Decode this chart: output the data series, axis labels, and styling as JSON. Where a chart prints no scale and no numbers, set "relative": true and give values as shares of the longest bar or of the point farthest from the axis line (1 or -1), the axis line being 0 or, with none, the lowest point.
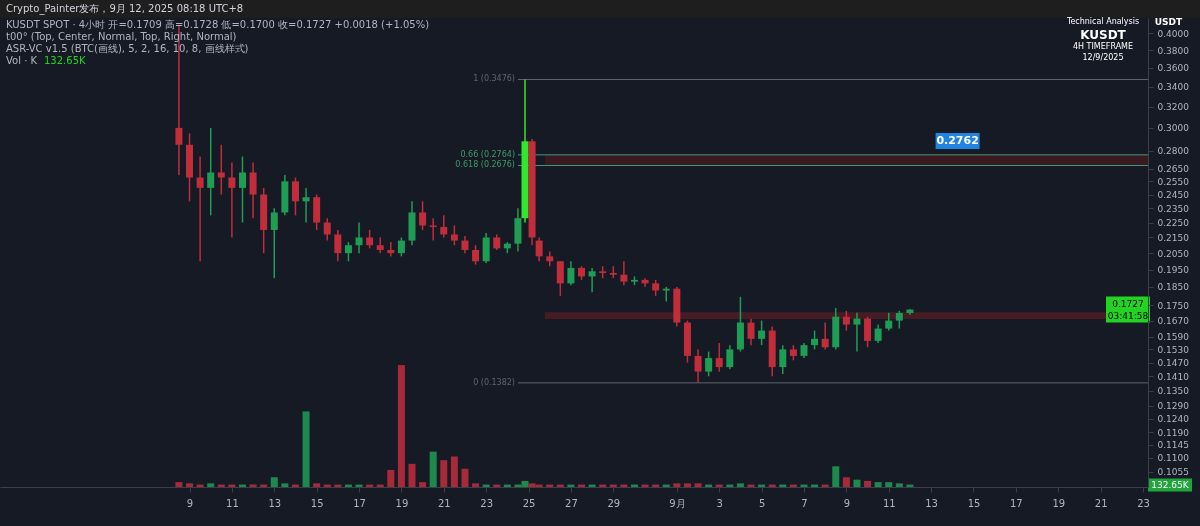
{
  "chart_data": [
    {
      "type": "candlestick",
      "ylabel": "USDT",
      "log": "y",
      "grid": false,
      "xlim": [
        "2025-07-31T07:00",
        "2025-09-23T00:00"
      ],
      "xticks": [
        {
          "value": "2025-08-09",
          "label": "9"
        },
        {
          "value": "2025-08-11",
          "label": "11"
        },
        {
          "value": "2025-08-13",
          "label": "13"
        },
        {
          "value": "2025-08-15",
          "label": "15"
        },
        {
          "value": "2025-08-17",
          "label": "17"
        },
        {
          "value": "2025-08-19",
          "label": "19"
        },
        {
          "value": "2025-08-21",
          "label": "21"
        },
        {
          "value": "2025-08-23",
          "label": "23"
        },
        {
          "value": "2025-08-25",
          "label": "25"
        },
        {
          "value": "2025-08-27",
          "label": "27"
        },
        {
          "value": "2025-08-29",
          "label": "29"
        },
        {
          "value": "2025-09-01",
          "label": "9月"
        },
        {
          "value": "2025-09-03",
          "label": "3"
        },
        {
          "value": "2025-09-05",
          "label": "5"
        },
        {
          "value": "2025-09-07",
          "label": "7"
        },
        {
          "value": "2025-09-09",
          "label": "9"
        },
        {
          "value": "2025-09-11",
          "label": "11"
        },
        {
          "value": "2025-09-13",
          "label": "13"
        },
        {
          "value": "2025-09-15",
          "label": "15"
        },
        {
          "value": "2025-09-17",
          "label": "17"
        },
        {
          "value": "2025-09-19",
          "label": "19"
        },
        {
          "value": "2025-09-21",
          "label": "21"
        },
        {
          "value": "2025-09-23",
          "label": "23"
        }
      ],
      "ylim": [
        0.1007,
        0.419
      ],
      "yticks": [
        {
          "value": 0.4,
          "label": "0.4000"
        },
        {
          "value": 0.38,
          "label": "0.3800"
        },
        {
          "value": 0.36,
          "label": "0.3600"
        },
        {
          "value": 0.34,
          "label": "0.3400"
        },
        {
          "value": 0.32,
          "label": "0.3200"
        },
        {
          "value": 0.3,
          "label": "0.3000"
        },
        {
          "value": 0.28,
          "label": "0.2800"
        },
        {
          "value": 0.265,
          "label": "0.2650"
        },
        {
          "value": 0.255,
          "label": "0.2550"
        },
        {
          "value": 0.245,
          "label": "0.2450"
        },
        {
          "value": 0.235,
          "label": "0.2350"
        },
        {
          "value": 0.225,
          "label": "0.2250"
        },
        {
          "value": 0.215,
          "label": "0.2150"
        },
        {
          "value": 0.205,
          "label": "0.2050"
        },
        {
          "value": 0.195,
          "label": "0.1950"
        },
        {
          "value": 0.185,
          "label": "0.1850"
        },
        {
          "value": 0.175,
          "label": "0.1750"
        },
        {
          "value": 0.167,
          "label": "0.1670"
        },
        {
          "value": 0.159,
          "label": "0.1590"
        },
        {
          "value": 0.153,
          "label": "0.1530"
        },
        {
          "value": 0.147,
          "label": "0.1470"
        },
        {
          "value": 0.141,
          "label": "0.1410"
        },
        {
          "value": 0.135,
          "label": "0.1350"
        },
        {
          "value": 0.129,
          "label": "0.1290"
        },
        {
          "value": 0.124,
          "label": "0.1240"
        },
        {
          "value": 0.119,
          "label": "0.1190"
        },
        {
          "value": 0.1145,
          "label": "0.1145"
        },
        {
          "value": 0.11,
          "label": "0.1100"
        },
        {
          "value": 0.1055,
          "label": "0.1055"
        }
      ],
      "x": [
        "2025-08-08T12:00",
        "2025-08-09T00:00",
        "2025-08-09T12:00",
        "2025-08-10T00:00",
        "2025-08-10T12:00",
        "2025-08-11T00:00",
        "2025-08-11T12:00",
        "2025-08-12T00:00",
        "2025-08-12T12:00",
        "2025-08-13T00:00",
        "2025-08-13T12:00",
        "2025-08-14T00:00",
        "2025-08-14T12:00",
        "2025-08-15T00:00",
        "2025-08-15T12:00",
        "2025-08-16T00:00",
        "2025-08-16T12:00",
        "2025-08-17T00:00",
        "2025-08-17T12:00",
        "2025-08-18T00:00",
        "2025-08-18T12:00",
        "2025-08-19T00:00",
        "2025-08-19T12:00",
        "2025-08-20T00:00",
        "2025-08-20T12:00",
        "2025-08-21T00:00",
        "2025-08-21T12:00",
        "2025-08-22T00:00",
        "2025-08-22T12:00",
        "2025-08-23T00:00",
        "2025-08-23T12:00",
        "2025-08-24T00:00",
        "2025-08-24T12:00",
        "2025-08-24T20:00",
        "2025-08-25T04:00",
        "2025-08-25T12:00",
        "2025-08-26T00:00",
        "2025-08-26T12:00",
        "2025-08-27T00:00",
        "2025-08-27T12:00",
        "2025-08-28T00:00",
        "2025-08-28T12:00",
        "2025-08-29T00:00",
        "2025-08-29T12:00",
        "2025-08-30T00:00",
        "2025-08-30T12:00",
        "2025-08-31T00:00",
        "2025-08-31T12:00",
        "2025-09-01T00:00",
        "2025-09-01T12:00",
        "2025-09-02T00:00",
        "2025-09-02T12:00",
        "2025-09-03T00:00",
        "2025-09-03T12:00",
        "2025-09-04T00:00",
        "2025-09-04T12:00",
        "2025-09-05T00:00",
        "2025-09-05T12:00",
        "2025-09-06T00:00",
        "2025-09-06T12:00",
        "2025-09-07T00:00",
        "2025-09-07T12:00",
        "2025-09-08T00:00",
        "2025-09-08T12:00",
        "2025-09-09T00:00",
        "2025-09-09T12:00",
        "2025-09-10T00:00",
        "2025-09-10T12:00",
        "2025-09-11T00:00",
        "2025-09-11T12:00",
        "2025-09-12T00:00"
      ],
      "ohlc": [
        [
          0.3,
          0.41,
          0.26,
          0.285
        ],
        [
          0.285,
          0.295,
          0.24,
          0.258
        ],
        [
          0.258,
          0.275,
          0.2,
          0.25
        ],
        [
          0.25,
          0.3,
          0.23,
          0.262
        ],
        [
          0.262,
          0.285,
          0.245,
          0.258
        ],
        [
          0.258,
          0.27,
          0.215,
          0.25
        ],
        [
          0.25,
          0.275,
          0.225,
          0.262
        ],
        [
          0.262,
          0.27,
          0.228,
          0.245
        ],
        [
          0.245,
          0.25,
          0.205,
          0.22
        ],
        [
          0.22,
          0.235,
          0.19,
          0.232
        ],
        [
          0.232,
          0.26,
          0.23,
          0.255
        ],
        [
          0.255,
          0.258,
          0.23,
          0.24
        ],
        [
          0.24,
          0.25,
          0.225,
          0.243
        ],
        [
          0.243,
          0.245,
          0.22,
          0.225
        ],
        [
          0.225,
          0.228,
          0.213,
          0.217
        ],
        [
          0.217,
          0.22,
          0.2,
          0.205
        ],
        [
          0.205,
          0.212,
          0.2,
          0.21
        ],
        [
          0.21,
          0.225,
          0.205,
          0.215
        ],
        [
          0.215,
          0.22,
          0.208,
          0.21
        ],
        [
          0.21,
          0.215,
          0.205,
          0.207
        ],
        [
          0.207,
          0.212,
          0.203,
          0.205
        ],
        [
          0.205,
          0.215,
          0.203,
          0.213
        ],
        [
          0.213,
          0.24,
          0.21,
          0.232
        ],
        [
          0.232,
          0.24,
          0.22,
          0.223
        ],
        [
          0.223,
          0.228,
          0.213,
          0.222
        ],
        [
          0.222,
          0.23,
          0.215,
          0.217
        ],
        [
          0.217,
          0.223,
          0.21,
          0.213
        ],
        [
          0.213,
          0.216,
          0.205,
          0.207
        ],
        [
          0.207,
          0.21,
          0.198,
          0.2
        ],
        [
          0.2,
          0.218,
          0.199,
          0.215
        ],
        [
          0.215,
          0.217,
          0.207,
          0.208
        ],
        [
          0.208,
          0.212,
          0.205,
          0.211
        ],
        [
          0.211,
          0.235,
          0.206,
          0.228
        ],
        [
          0.228,
          0.3476,
          0.225,
          0.288
        ],
        [
          0.288,
          0.29,
          0.21,
          0.215
        ],
        [
          0.213,
          0.215,
          0.2,
          0.203
        ],
        [
          0.203,
          0.206,
          0.197,
          0.2
        ],
        [
          0.2,
          0.2,
          0.18,
          0.187
        ],
        [
          0.187,
          0.2,
          0.186,
          0.196
        ],
        [
          0.196,
          0.197,
          0.189,
          0.191
        ],
        [
          0.191,
          0.196,
          0.182,
          0.194
        ],
        [
          0.194,
          0.197,
          0.19,
          0.193
        ],
        [
          0.193,
          0.197,
          0.19,
          0.192
        ],
        [
          0.192,
          0.2,
          0.186,
          0.188
        ],
        [
          0.188,
          0.191,
          0.186,
          0.189
        ],
        [
          0.189,
          0.19,
          0.185,
          0.187
        ],
        [
          0.187,
          0.189,
          0.18,
          0.183
        ],
        [
          0.183,
          0.185,
          0.177,
          0.184
        ],
        [
          0.184,
          0.185,
          0.164,
          0.166
        ],
        [
          0.166,
          0.167,
          0.147,
          0.15
        ],
        [
          0.15,
          0.153,
          0.1382,
          0.143
        ],
        [
          0.143,
          0.152,
          0.141,
          0.149
        ],
        [
          0.149,
          0.156,
          0.143,
          0.145
        ],
        [
          0.145,
          0.155,
          0.144,
          0.153
        ],
        [
          0.153,
          0.1795,
          0.152,
          0.166
        ],
        [
          0.166,
          0.168,
          0.155,
          0.158
        ],
        [
          0.158,
          0.167,
          0.155,
          0.162
        ],
        [
          0.162,
          0.164,
          0.141,
          0.145
        ],
        [
          0.145,
          0.155,
          0.142,
          0.153
        ],
        [
          0.153,
          0.155,
          0.148,
          0.15
        ],
        [
          0.15,
          0.156,
          0.149,
          0.155
        ],
        [
          0.155,
          0.162,
          0.153,
          0.158
        ],
        [
          0.158,
          0.166,
          0.153,
          0.154
        ],
        [
          0.154,
          0.1735,
          0.153,
          0.169
        ],
        [
          0.169,
          0.172,
          0.162,
          0.165
        ],
        [
          0.165,
          0.171,
          0.152,
          0.168
        ],
        [
          0.168,
          0.169,
          0.154,
          0.157
        ],
        [
          0.157,
          0.165,
          0.156,
          0.163
        ],
        [
          0.163,
          0.171,
          0.162,
          0.167
        ],
        [
          0.167,
          0.172,
          0.163,
          0.1709
        ],
        [
          0.1709,
          0.1728,
          0.17,
          0.1727
        ]
      ],
      "colors": [
        "#c22d3c",
        "#c22d3c",
        "#c22d3c",
        "#1f9d55",
        "#c22d3c",
        "#c22d3c",
        "#1f9d55",
        "#c22d3c",
        "#c22d3c",
        "#1f9d55",
        "#1f9d55",
        "#c22d3c",
        "#1f9d55",
        "#c22d3c",
        "#c22d3c",
        "#c22d3c",
        "#1f9d55",
        "#1f9d55",
        "#c22d3c",
        "#c22d3c",
        "#c22d3c",
        "#1f9d55",
        "#1f9d55",
        "#c22d3c",
        "#c22d3c",
        "#c22d3c",
        "#c22d3c",
        "#c22d3c",
        "#c22d3c",
        "#1f9d55",
        "#c22d3c",
        "#1f9d55",
        "#1f9d55",
        "#2ee82e",
        "#c22d3c",
        "#c22d3c",
        "#c22d3c",
        "#c22d3c",
        "#1f9d55",
        "#c22d3c",
        "#1f9d55",
        "#c22d3c",
        "#c22d3c",
        "#c22d3c",
        "#1f9d55",
        "#c22d3c",
        "#c22d3c",
        "#1f9d55",
        "#c22d3c",
        "#c22d3c",
        "#c22d3c",
        "#1f9d55",
        "#c22d3c",
        "#1f9d55",
        "#1f9d55",
        "#c22d3c",
        "#1f9d55",
        "#c22d3c",
        "#1f9d55",
        "#c22d3c",
        "#1f9d55",
        "#1f9d55",
        "#c22d3c",
        "#1f9d55",
        "#c22d3c",
        "#1f9d55",
        "#c22d3c",
        "#1f9d55",
        "#1f9d55",
        "#1f9d55",
        "#1f9d55"
      ],
      "bands": [
        {
          "axis": "y",
          "from": 0.2676,
          "to": 0.2764,
          "color": "#5a1a22"
        },
        {
          "axis": "y",
          "from": 0.1678,
          "to": 0.1713,
          "color": "#6e1d25"
        }
      ],
      "ref_lines": [
        {
          "axis": "y",
          "value": 0.3476,
          "label": "1 (0.3476)",
          "color": "#5d6470"
        },
        {
          "axis": "y",
          "value": 0.2764,
          "label": "0.66 (0.2764)",
          "color": "#3f9a6e"
        },
        {
          "axis": "y",
          "value": 0.2676,
          "label": "0.618 (0.2676)",
          "color": "#3f9a6e"
        },
        {
          "axis": "y",
          "value": 0.1382,
          "label": "0 (0.1382)",
          "color": "#5d6470"
        }
      ],
      "annotations": [
        "Crypto_Painter发布，9月 12, 2025 08:18 UTC+8",
        "KUSDT SPOT · 4小时  开=0.1709  高=0.1728  低=0.1700  收=0.1727  +0.0018 (+1.05%)",
        "t00° (Top, Center, Normal, Top, Right, Normal)",
        "ASR-VC v1.5 (BTC(画线), 5, 2, 16, 10, 8, 画线样式)",
        "Technical Analysis",
        "KUSDT",
        "4H TIMEFRAME",
        "12/9/2025",
        "0.1727",
        "03:41:58",
        {
          "text": "0.2762",
          "x": "2025-09-14T06:00",
          "y": 0.2762
        }
      ]
    },
    {
      "type": "bar",
      "relative": true,
      "tick_labels": false,
      "xlim": [
        "2025-07-31T07:00",
        "2025-09-23T00:00"
      ],
      "x": [
        "2025-08-08T12:00",
        "2025-08-09T00:00",
        "2025-08-09T12:00",
        "2025-08-10T00:00",
        "2025-08-10T12:00",
        "2025-08-11T00:00",
        "2025-08-11T12:00",
        "2025-08-12T00:00",
        "2025-08-12T12:00",
        "2025-08-13T00:00",
        "2025-08-13T12:00",
        "2025-08-14T00:00",
        "2025-08-14T12:00",
        "2025-08-15T00:00",
        "2025-08-15T12:00",
        "2025-08-16T00:00",
        "2025-08-16T12:00",
        "2025-08-17T00:00",
        "2025-08-17T12:00",
        "2025-08-18T00:00",
        "2025-08-18T12:00",
        "2025-08-19T00:00",
        "2025-08-19T12:00",
        "2025-08-20T00:00",
        "2025-08-20T12:00",
        "2025-08-21T00:00",
        "2025-08-21T12:00",
        "2025-08-22T00:00",
        "2025-08-22T12:00",
        "2025-08-23T00:00",
        "2025-08-23T12:00",
        "2025-08-24T00:00",
        "2025-08-24T12:00",
        "2025-08-24T20:00",
        "2025-08-25T04:00",
        "2025-08-25T12:00",
        "2025-08-26T00:00",
        "2025-08-26T12:00",
        "2025-08-27T00:00",
        "2025-08-27T12:00",
        "2025-08-28T00:00",
        "2025-08-28T12:00",
        "2025-08-29T00:00",
        "2025-08-29T12:00",
        "2025-08-30T00:00",
        "2025-08-30T12:00",
        "2025-08-31T00:00",
        "2025-08-31T12:00",
        "2025-09-01T00:00",
        "2025-09-01T12:00",
        "2025-09-02T00:00",
        "2025-09-02T12:00",
        "2025-09-03T00:00",
        "2025-09-03T12:00",
        "2025-09-04T00:00",
        "2025-09-04T12:00",
        "2025-09-05T00:00",
        "2025-09-05T12:00",
        "2025-09-06T00:00",
        "2025-09-06T12:00",
        "2025-09-07T00:00",
        "2025-09-07T12:00",
        "2025-09-08T00:00",
        "2025-09-08T12:00",
        "2025-09-09T00:00",
        "2025-09-09T12:00",
        "2025-09-10T00:00",
        "2025-09-10T12:00",
        "2025-09-11T00:00",
        "2025-09-11T12:00",
        "2025-09-12T00:00"
      ],
      "values": [
        0.04,
        0.03,
        0.02,
        0.03,
        0.02,
        0.02,
        0.02,
        0.02,
        0.02,
        0.08,
        0.03,
        0.02,
        0.62,
        0.03,
        0.02,
        0.02,
        0.02,
        0.02,
        0.02,
        0.02,
        0.14,
        1.0,
        0.19,
        0.04,
        0.29,
        0.22,
        0.25,
        0.15,
        0.03,
        0.02,
        0.02,
        0.02,
        0.02,
        0.05,
        0.03,
        0.02,
        0.02,
        0.02,
        0.02,
        0.02,
        0.02,
        0.02,
        0.02,
        0.02,
        0.02,
        0.02,
        0.02,
        0.02,
        0.03,
        0.03,
        0.03,
        0.02,
        0.02,
        0.02,
        0.03,
        0.02,
        0.02,
        0.02,
        0.02,
        0.02,
        0.02,
        0.02,
        0.02,
        0.17,
        0.08,
        0.06,
        0.05,
        0.04,
        0.04,
        0.03,
        0.02
      ],
      "colors": [
        "#c22d3c",
        "#c22d3c",
        "#c22d3c",
        "#1f9d55",
        "#c22d3c",
        "#c22d3c",
        "#1f9d55",
        "#c22d3c",
        "#c22d3c",
        "#1f9d55",
        "#1f9d55",
        "#c22d3c",
        "#1f9d55",
        "#c22d3c",
        "#c22d3c",
        "#c22d3c",
        "#1f9d55",
        "#1f9d55",
        "#c22d3c",
        "#c22d3c",
        "#c22d3c",
        "#c22d3c",
        "#c22d3c",
        "#c22d3c",
        "#1f9d55",
        "#c22d3c",
        "#c22d3c",
        "#c22d3c",
        "#c22d3c",
        "#1f9d55",
        "#c22d3c",
        "#1f9d55",
        "#1f9d55",
        "#1f9d55",
        "#c22d3c",
        "#c22d3c",
        "#c22d3c",
        "#c22d3c",
        "#1f9d55",
        "#c22d3c",
        "#1f9d55",
        "#c22d3c",
        "#c22d3c",
        "#c22d3c",
        "#1f9d55",
        "#c22d3c",
        "#c22d3c",
        "#1f9d55",
        "#c22d3c",
        "#c22d3c",
        "#c22d3c",
        "#1f9d55",
        "#c22d3c",
        "#1f9d55",
        "#1f9d55",
        "#c22d3c",
        "#1f9d55",
        "#c22d3c",
        "#1f9d55",
        "#c22d3c",
        "#1f9d55",
        "#1f9d55",
        "#c22d3c",
        "#1f9d55",
        "#c22d3c",
        "#1f9d55",
        "#c22d3c",
        "#1f9d55",
        "#1f9d55",
        "#1f9d55",
        "#1f9d55"
      ],
      "annotations": [
        "Vol · K",
        "132.65K",
        "132.65K"
      ]
    }
  ]
}
